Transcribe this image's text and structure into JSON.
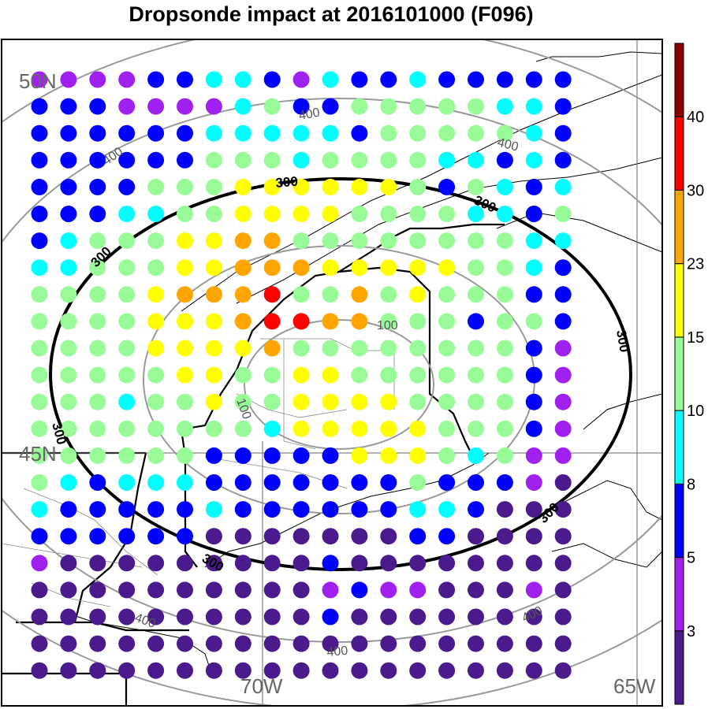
{
  "title": "Dropsonde impact at 2016101000 (F096)",
  "map": {
    "lat_labels": [
      "50N",
      "45N"
    ],
    "lon_labels": [
      "70W",
      "65W"
    ],
    "contour_labels": {
      "c100": "100",
      "c300": "300",
      "c400": "400"
    },
    "contour_levels_km": [
      100,
      200,
      300,
      400,
      500
    ],
    "highlighted_contour": 300
  },
  "colorbar": {
    "labels": [
      "3",
      "5",
      "8",
      "10",
      "15",
      "23",
      "30",
      "40"
    ],
    "colors": [
      "#4b1a8c",
      "#a020f0",
      "#0000ff",
      "#00ffff",
      "#98fb98",
      "#ffff00",
      "#ffa500",
      "#ff0000",
      "#8b0000"
    ]
  },
  "legend_text": {
    "bins_desc": ""
  },
  "dots": {
    "rows": [
      "PPPPBBCCBPCBBCBBBBB",
      "BBBPPPPCGBBGGGGGCCB",
      "BBBBBBCCCCCBGGGGGCB",
      "BBBBBBGGGCGGGGCCBCB",
      "BBBBGGGYYYYYYGBGCBC",
      "BBBCCGGYYYYGGGGCCBG",
      "BCGGGYYOOGGGGGGGGCC",
      "CCGGGYYOOOYYYYYGGCB",
      "GGGGYOOORGGOGYGGGBB",
      "GGGGYYYORROOGGGBGGB",
      "GGGGYYYYOGGGGGGGGBP",
      "GGGGGYYGGYYGGGGGGBP",
      "GGGCGGYGGYYYYGGGGBP",
      "GGGGGGGGCYYYYYGGGBP",
      "GGGGGGBBBBBYYYGCGPP",
      "GCBCCCBBBBBBBGBBBPD",
      "CBBBBBCBBBBBBCCBDDD",
      "BBBBBBDDDDDDDBBDDDD",
      "PDDDDDDDDDBDDDDDDDD",
      "DDDDDDDDDDPBPPDDDPD",
      "DDDDDDDDDDBDDDDDDDD",
      "DDDDDDDDDDDDDDDDDDD",
      "DDDDDDDDDDDDDDDDDDD"
    ],
    "legend": {
      "D": "#4b1a8c",
      "P": "#a020f0",
      "B": "#0000ff",
      "C": "#00ffff",
      "G": "#98fb98",
      "Y": "#ffff00",
      "O": "#ffa500",
      "R": "#ff0000"
    }
  }
}
